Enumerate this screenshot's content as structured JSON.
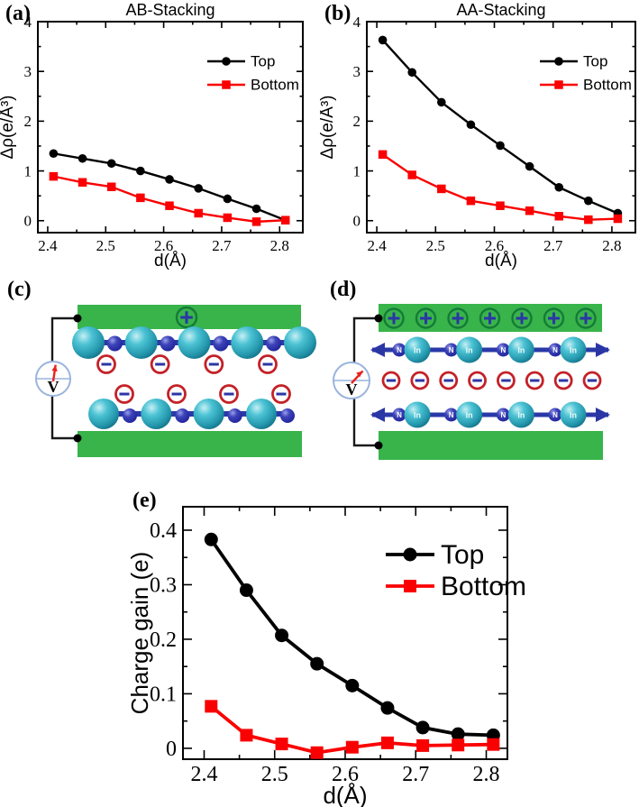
{
  "panels": {
    "a": {
      "label": "(a)"
    },
    "b": {
      "label": "(b)"
    },
    "c": {
      "label": "(c)"
    },
    "d": {
      "label": "(d)"
    },
    "e": {
      "label": "(e)"
    }
  },
  "colors": {
    "top_series": "#000000",
    "bottom_series": "#fa0000",
    "plate_green": "#38b44a",
    "plus_ring_green": "#157a38",
    "minus_ring_red": "#c42127",
    "symbol_blue": "#2b36a5",
    "atom_bond_blue": "#2a39a8",
    "voltmeter_ring": "#9ab4de",
    "needle_red": "#e8231f",
    "wire_black": "#1a1a1a"
  },
  "chart_data": [
    {
      "id": "a",
      "type": "line",
      "title": "AB-Stacking",
      "xlabel": "d(Å)",
      "ylabel": "Δρ(e/Å³)",
      "x": [
        2.41,
        2.46,
        2.51,
        2.56,
        2.61,
        2.66,
        2.71,
        2.76,
        2.81
      ],
      "series": [
        {
          "name": "Top",
          "marker": "circle",
          "color_key": "top_series",
          "values": [
            1.35,
            1.25,
            1.15,
            1.0,
            0.83,
            0.65,
            0.44,
            0.24,
            0.01
          ]
        },
        {
          "name": "Bottom",
          "marker": "square",
          "color_key": "bottom_series",
          "values": [
            0.89,
            0.77,
            0.68,
            0.46,
            0.3,
            0.15,
            0.06,
            -0.02,
            0.01
          ]
        }
      ],
      "xlim": [
        2.383,
        2.84
      ],
      "ylim": [
        -0.24,
        4.0
      ],
      "xticks": {
        "values": [
          2.4,
          2.5,
          2.6,
          2.7,
          2.8
        ],
        "labels": [
          "2.4",
          "2.5",
          "2.6",
          "2.7",
          "2.8"
        ]
      },
      "yticks": {
        "values": [
          0,
          1,
          2,
          3,
          4
        ],
        "labels": [
          "0",
          "1",
          "2",
          "3",
          "4"
        ]
      },
      "xminor": [
        2.45,
        2.55,
        2.65,
        2.75
      ],
      "yminor": [
        0.5,
        1.5,
        2.5,
        3.5
      ],
      "grid": false,
      "legend_position": "top-right"
    },
    {
      "id": "b",
      "type": "line",
      "title": "AA-Stacking",
      "xlabel": "d(Å)",
      "ylabel": "Δρ(e/Å³)",
      "x": [
        2.41,
        2.46,
        2.51,
        2.56,
        2.61,
        2.66,
        2.71,
        2.76,
        2.81
      ],
      "series": [
        {
          "name": "Top",
          "marker": "circle",
          "color_key": "top_series",
          "values": [
            3.63,
            2.98,
            2.38,
            1.93,
            1.51,
            1.09,
            0.67,
            0.4,
            0.15
          ]
        },
        {
          "name": "Bottom",
          "marker": "square",
          "color_key": "bottom_series",
          "values": [
            1.33,
            0.92,
            0.64,
            0.4,
            0.3,
            0.2,
            0.09,
            0.02,
            0.04
          ]
        }
      ],
      "xlim": [
        2.383,
        2.84
      ],
      "ylim": [
        -0.24,
        4.0
      ],
      "xticks": {
        "values": [
          2.4,
          2.5,
          2.6,
          2.7,
          2.8
        ],
        "labels": [
          "2.4",
          "2.5",
          "2.6",
          "2.7",
          "2.8"
        ]
      },
      "yticks": {
        "values": [
          0,
          1,
          2,
          3,
          4
        ],
        "labels": [
          "0",
          "1",
          "2",
          "3",
          "4"
        ]
      },
      "xminor": [
        2.45,
        2.55,
        2.65,
        2.75
      ],
      "yminor": [
        0.5,
        1.5,
        2.5,
        3.5
      ],
      "grid": false,
      "legend_position": "top-right"
    },
    {
      "id": "e",
      "type": "line",
      "title": "",
      "xlabel": "d(Å)",
      "ylabel": "Charge gain (e)",
      "x": [
        2.41,
        2.46,
        2.51,
        2.56,
        2.61,
        2.66,
        2.71,
        2.76,
        2.81
      ],
      "series": [
        {
          "name": "Top",
          "marker": "circle",
          "color_key": "top_series",
          "values": [
            0.383,
            0.29,
            0.207,
            0.155,
            0.115,
            0.074,
            0.038,
            0.026,
            0.024
          ]
        },
        {
          "name": "Bottom",
          "marker": "square",
          "color_key": "bottom_series",
          "values": [
            0.077,
            0.024,
            0.008,
            -0.008,
            0.002,
            0.01,
            0.005,
            0.006,
            0.007
          ]
        }
      ],
      "xlim": [
        2.37,
        2.83
      ],
      "ylim": [
        -0.02,
        0.443
      ],
      "xticks": {
        "values": [
          2.4,
          2.5,
          2.6,
          2.7,
          2.8
        ],
        "labels": [
          "2.4",
          "2.5",
          "2.6",
          "2.7",
          "2.8"
        ]
      },
      "yticks": {
        "values": [
          0,
          0.1,
          0.2,
          0.3,
          0.4
        ],
        "labels": [
          "0",
          "0.1",
          "0.2",
          "0.3",
          "0.4"
        ]
      },
      "xminor": [
        2.45,
        2.55,
        2.65,
        2.75
      ],
      "yminor": [
        0.05,
        0.15,
        0.25,
        0.35
      ],
      "grid": false,
      "legend_position": "top-right"
    }
  ],
  "diagram_c": {
    "description": "AB-stacking bilayer between capacitor plates",
    "plus_count": 1,
    "minus_top_count": 4,
    "minus_bottom_count": 4,
    "top_chain_big_atoms": 5,
    "bottom_chain_big_atoms": 4,
    "voltmeter_label": "V"
  },
  "diagram_d": {
    "description": "AA-stacking bilayer between capacitor plates",
    "plus_count": 7,
    "minus_count": 8,
    "chain_units": 4,
    "atom_small_label": "N",
    "atom_big_label": "In",
    "voltmeter_label": "V"
  }
}
